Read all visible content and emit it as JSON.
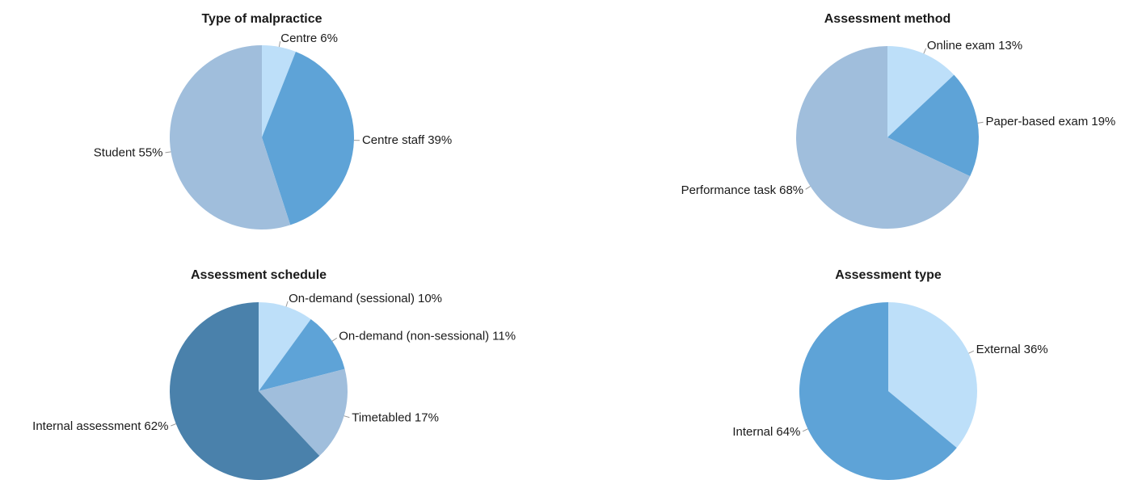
{
  "chart_data": [
    {
      "type": "pie",
      "title": "Type of malpractice",
      "categories": [
        "Centre",
        "Centre staff",
        "Student"
      ],
      "values": [
        6,
        39,
        55
      ],
      "value_labels": [
        "6%",
        "39%",
        "55%"
      ],
      "colors": [
        "#bddff9",
        "#5ea3d7",
        "#a0bedc"
      ]
    },
    {
      "type": "pie",
      "title": "Assessment method",
      "categories": [
        "Online exam",
        "Paper-based exam",
        "Performance task"
      ],
      "values": [
        13,
        19,
        68
      ],
      "value_labels": [
        "13%",
        "19%",
        "68%"
      ],
      "colors": [
        "#bddff9",
        "#5ea3d7",
        "#a0bedc"
      ]
    },
    {
      "type": "pie",
      "title": "Assessment schedule",
      "categories": [
        "On-demand (sessional)",
        "On-demand (non-sessional)",
        "Timetabled",
        "Internal assessment"
      ],
      "values": [
        10,
        11,
        17,
        62
      ],
      "value_labels": [
        "10%",
        "11%",
        "17%",
        "62%"
      ],
      "colors": [
        "#bddff9",
        "#5ea3d7",
        "#a0bedc",
        "#4a81ab"
      ]
    },
    {
      "type": "pie",
      "title": "Assessment type",
      "categories": [
        "External",
        "Internal"
      ],
      "values": [
        36,
        64
      ],
      "value_labels": [
        "36%",
        "64%"
      ],
      "colors": [
        "#bddff9",
        "#5ea3d7"
      ]
    }
  ]
}
